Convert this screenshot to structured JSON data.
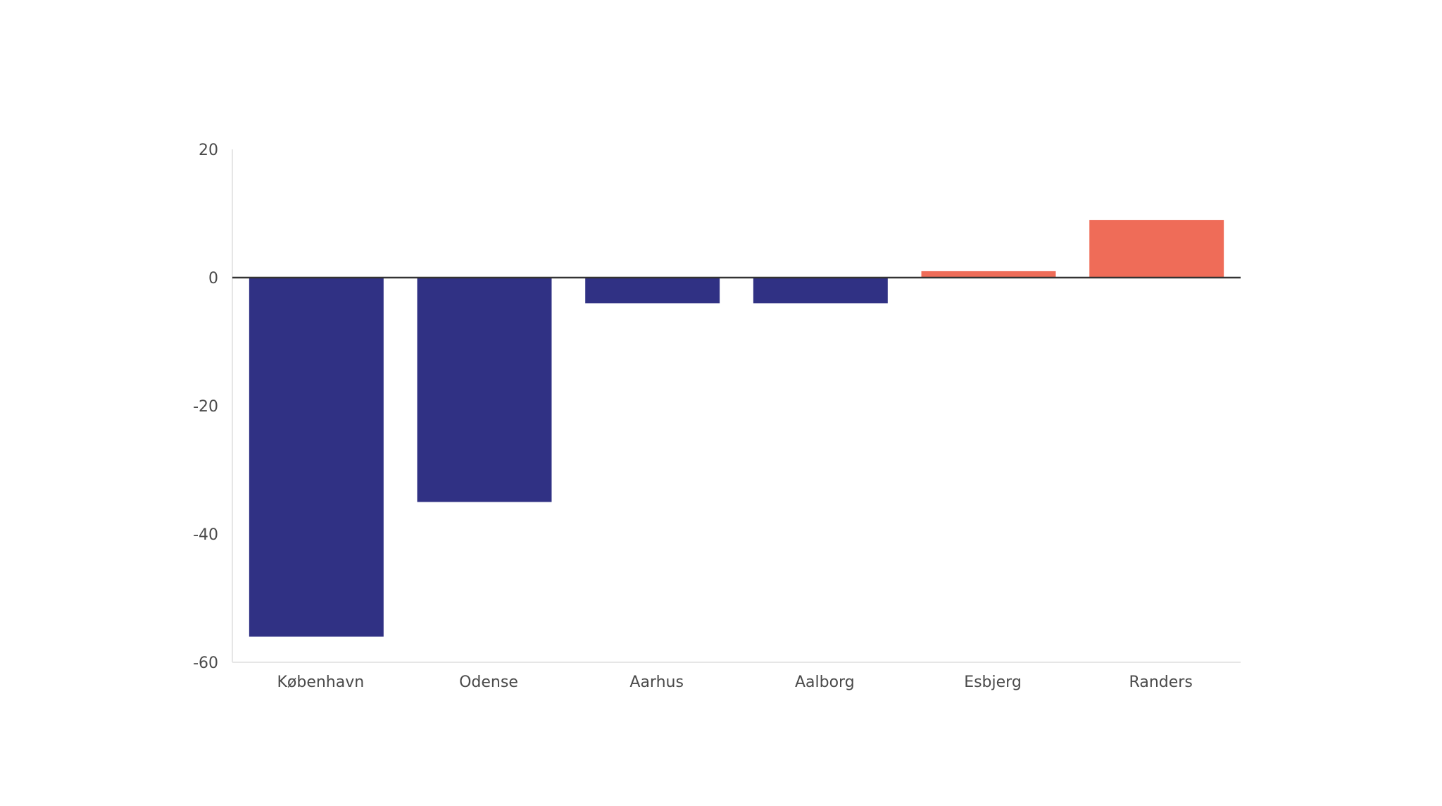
{
  "chart_data": {
    "type": "bar",
    "categories": [
      "København",
      "Odense",
      "Aarhus",
      "Aalborg",
      "Esbjerg",
      "Randers"
    ],
    "values": [
      -56,
      -35,
      -4,
      -4,
      1,
      9
    ],
    "title": "",
    "xlabel": "",
    "ylabel": "",
    "ylim": [
      -60,
      20
    ],
    "yticks": [
      20,
      0,
      -20,
      -40,
      -60
    ],
    "ytick_labels": [
      "20",
      "0",
      "-20",
      "-40",
      "-60"
    ],
    "grid": false,
    "colors": {
      "negative": "#303184",
      "positive": "#ef6c58",
      "zero_line": "#333333",
      "axis": "#e6e6e6"
    }
  }
}
